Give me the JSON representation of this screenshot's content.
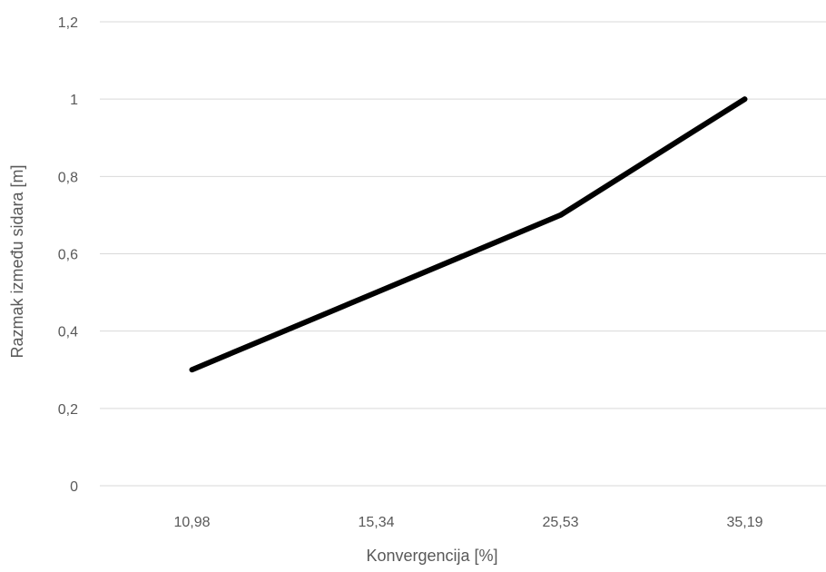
{
  "chart_data": {
    "type": "line",
    "categories": [
      "10,98",
      "15,34",
      "25,53",
      "35,19"
    ],
    "series": [
      {
        "values": [
          0.3,
          0.5,
          0.7,
          1.0
        ]
      }
    ],
    "xlabel": "Konvergencija [%]",
    "ylabel": "Razmak između sidara [m]",
    "ylim": [
      0,
      1.2
    ],
    "yticks": [
      0,
      0.2,
      0.4,
      0.6,
      0.8,
      1,
      1.2
    ],
    "ytick_labels": [
      "0",
      "0,2",
      "0,4",
      "0,6",
      "0,8",
      "1",
      "1,2"
    ],
    "grid": "horizontal",
    "line_color": "#000000",
    "grid_color": "#d9d9d9",
    "text_color": "#595959"
  }
}
